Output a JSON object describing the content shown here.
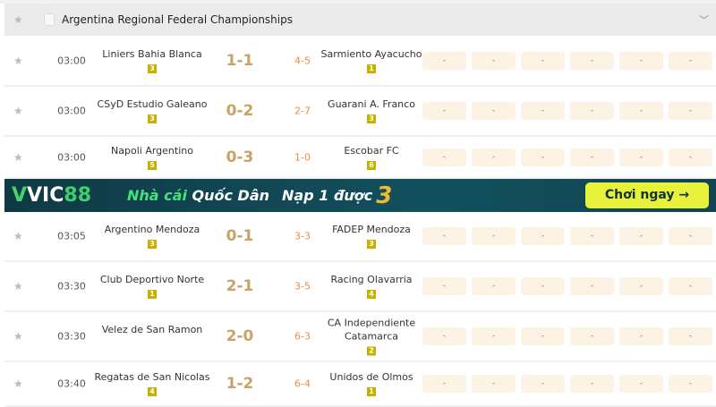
{
  "league": {
    "title": "Argentina Regional Federal Championships"
  },
  "matches_a": [
    {
      "time": "03:00",
      "home": "Liniers Bahia Blanca",
      "home_badge": "3",
      "score": "1-1",
      "corners": "4-5",
      "away": "Sarmiento Ayacucho",
      "away_badge": "1",
      "odds": [
        "-",
        "-",
        "-",
        "-",
        "-",
        "-"
      ]
    },
    {
      "time": "03:00",
      "home": "CSyD Estudio Galeano",
      "home_badge": "3",
      "score": "0-2",
      "corners": "2-7",
      "away": "Guarani A. Franco",
      "away_badge": "3",
      "odds": [
        "-",
        "-",
        "-",
        "-",
        "-",
        "-"
      ]
    },
    {
      "time": "03:00",
      "home": "Napoli Argentino",
      "home_badge": "5",
      "score": "0-3",
      "corners": "1-0",
      "away": "Escobar FC",
      "away_badge": "6",
      "odds": [
        "-",
        "-",
        "-",
        "-",
        "-",
        "-"
      ]
    }
  ],
  "banner": {
    "brand_v": "V",
    "brand_vic": "VIC",
    "brand_88": "88",
    "tagline_a": "Nhà cái",
    "tagline_b": "Quốc Dân",
    "promo": "Nạp 1 được",
    "promo_num": "3",
    "cta": "Chơi ngay →"
  },
  "matches_b": [
    {
      "time": "03:05",
      "home": "Argentino Mendoza",
      "home_badge": "3",
      "score": "0-1",
      "corners": "3-3",
      "away": "FADEP Mendoza",
      "away_badge": "3",
      "odds": [
        "-",
        "-",
        "-",
        "-",
        "-",
        "-"
      ]
    },
    {
      "time": "03:30",
      "home": "Club Deportivo Norte",
      "home_badge": "1",
      "score": "2-1",
      "corners": "3-5",
      "away": "Racing Olavarria",
      "away_badge": "4",
      "odds": [
        "-",
        "-",
        "-",
        "-",
        "-",
        "-"
      ]
    },
    {
      "time": "03:30",
      "home": "Velez de San Ramon",
      "home_badge": "",
      "score": "2-0",
      "corners": "6-3",
      "away": "CA Independiente Catamarca",
      "away_badge": "2",
      "odds": [
        "-",
        "-",
        "-",
        "-",
        "-",
        "-"
      ]
    },
    {
      "time": "03:40",
      "home": "Regatas de San Nicolas",
      "home_badge": "4",
      "score": "1-2",
      "corners": "6-4",
      "away": "Unidos de Olmos",
      "away_badge": "1",
      "odds": [
        "-",
        "-",
        "-",
        "-",
        "-",
        "-"
      ]
    }
  ]
}
